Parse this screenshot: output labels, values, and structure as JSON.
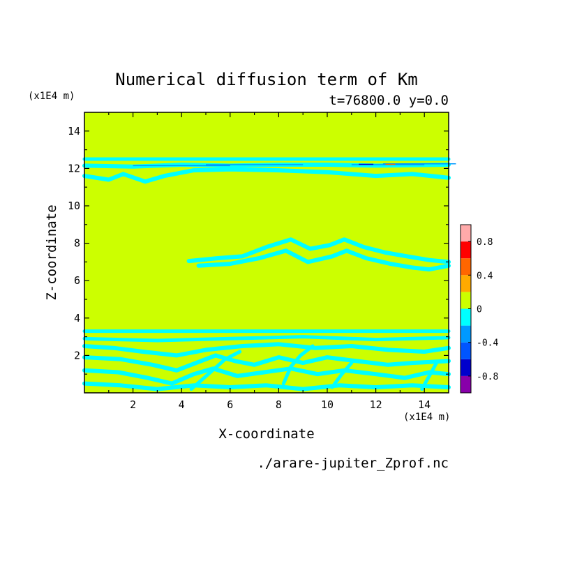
{
  "chart_data": {
    "type": "heatmap",
    "title": "Numerical diffusion term of Km",
    "subtitle": "t=76800.0 y=0.0",
    "xlabel": "X-coordinate",
    "ylabel": "Z-coordinate",
    "x_unit": "(x1E4 m)",
    "y_unit": "(x1E4 m)",
    "xlim": [
      0,
      15
    ],
    "ylim": [
      0,
      15
    ],
    "x_ticks": [
      "2",
      "4",
      "6",
      "8",
      "10",
      "12",
      "14"
    ],
    "y_ticks": [
      "2",
      "4",
      "6",
      "8",
      "10",
      "12",
      "14"
    ],
    "background_value_color": "#ccff00",
    "colorbar": {
      "levels": [
        -1.0,
        -0.8,
        -0.6,
        -0.4,
        -0.2,
        0,
        0.2,
        0.4,
        0.6,
        0.8,
        1.0
      ],
      "colors": [
        "#8800aa",
        "#0000cc",
        "#0055ff",
        "#0099ff",
        "#00ffff",
        "#ccff00",
        "#ffaa00",
        "#ff6600",
        "#ff0000",
        "#ffaaaa"
      ],
      "tick_labels": [
        "-0.8",
        "-0.4",
        "0",
        "0.4",
        "0.8"
      ]
    },
    "negative_regions": [
      {
        "name": "upper band",
        "z_range": [
          11.2,
          12.6
        ]
      },
      {
        "name": "middle band",
        "z_range": [
          6.6,
          8.4
        ],
        "x_range": [
          4.2,
          15
        ]
      },
      {
        "name": "lower band",
        "z_range": [
          0,
          3.5
        ]
      }
    ],
    "source_file": "./arare-jupiter_Zprof.nc"
  }
}
